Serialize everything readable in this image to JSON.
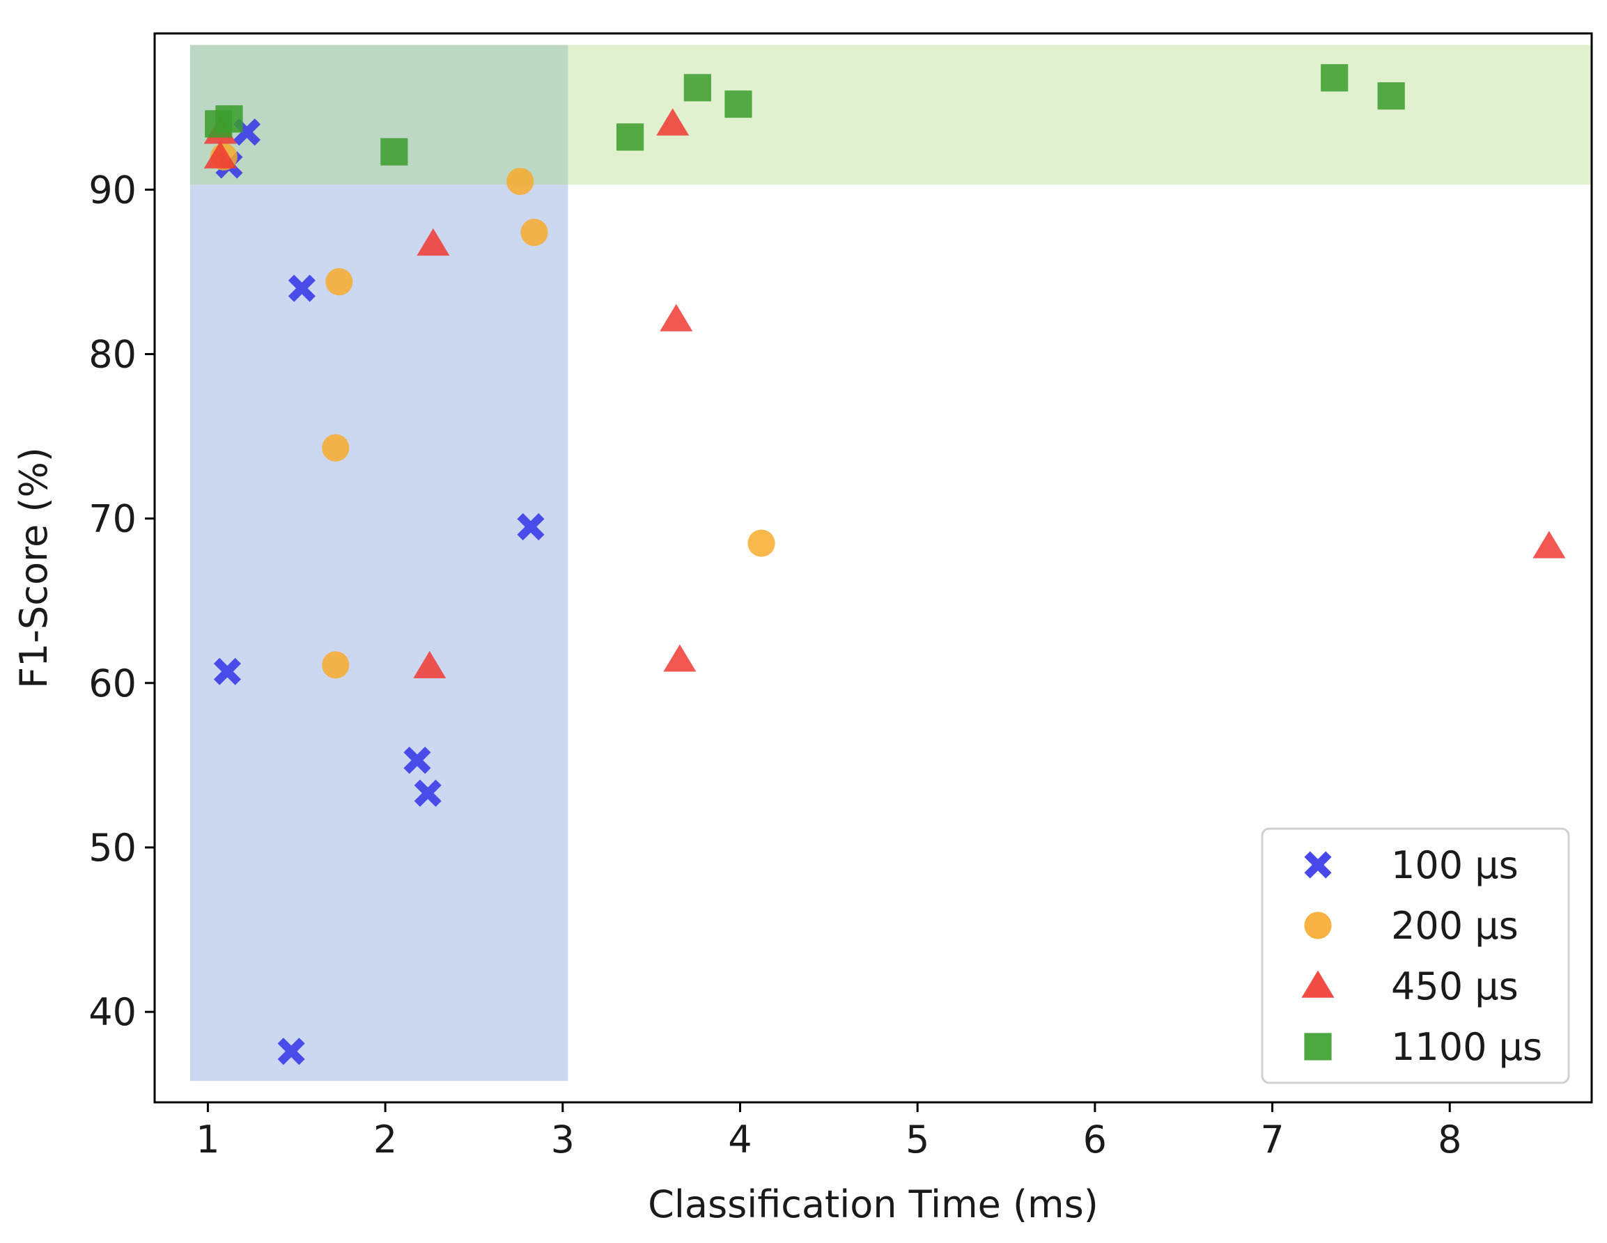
{
  "chart_data": {
    "type": "scatter",
    "title": "",
    "xlabel": "Classification Time (ms)",
    "ylabel": "F1-Score (%)",
    "xlim": [
      0.7,
      8.8
    ],
    "ylim": [
      34.5,
      99.5
    ],
    "xticks": [
      1,
      2,
      3,
      4,
      5,
      6,
      7,
      8
    ],
    "yticks": [
      40,
      50,
      60,
      70,
      80,
      90
    ],
    "grid": false,
    "legend_position": "lower-right",
    "regions": [
      {
        "name": "low-time-region",
        "x": [
          0.9,
          3.03
        ],
        "y": [
          35.8,
          98.8
        ],
        "color": "#c9d5ef"
      },
      {
        "name": "high-score-region",
        "x": [
          0.9,
          8.8
        ],
        "y": [
          90.3,
          98.8
        ],
        "color": "#dff0cc"
      }
    ],
    "series": [
      {
        "name": "100 µs",
        "marker": "x",
        "color": "#3434e8",
        "points": [
          [
            1.22,
            93.5
          ],
          [
            1.12,
            91.5
          ],
          [
            1.53,
            84.0
          ],
          [
            2.82,
            69.5
          ],
          [
            1.11,
            60.7
          ],
          [
            2.18,
            55.3
          ],
          [
            2.24,
            53.3
          ],
          [
            1.47,
            37.6
          ]
        ]
      },
      {
        "name": "200 µs",
        "marker": "circle",
        "color": "#f7ab2d",
        "points": [
          [
            1.09,
            92.0
          ],
          [
            2.76,
            90.5
          ],
          [
            2.84,
            87.4
          ],
          [
            1.74,
            84.4
          ],
          [
            1.72,
            74.3
          ],
          [
            4.12,
            68.5
          ],
          [
            1.72,
            61.1
          ]
        ]
      },
      {
        "name": "450 µs",
        "marker": "triangle",
        "color": "#f03a32",
        "points": [
          [
            1.07,
            93.5
          ],
          [
            1.07,
            92.0
          ],
          [
            3.62,
            94.0
          ],
          [
            2.27,
            86.7
          ],
          [
            3.64,
            82.1
          ],
          [
            8.56,
            68.3
          ],
          [
            2.25,
            61.0
          ],
          [
            3.66,
            61.4
          ]
        ]
      },
      {
        "name": "1100 µs",
        "marker": "square",
        "color": "#3a9e2c",
        "points": [
          [
            1.06,
            94.0
          ],
          [
            1.12,
            94.3
          ],
          [
            2.05,
            92.3
          ],
          [
            3.38,
            93.2
          ],
          [
            3.76,
            96.2
          ],
          [
            3.99,
            95.2
          ],
          [
            7.35,
            96.8
          ],
          [
            7.67,
            95.7
          ]
        ]
      }
    ]
  }
}
